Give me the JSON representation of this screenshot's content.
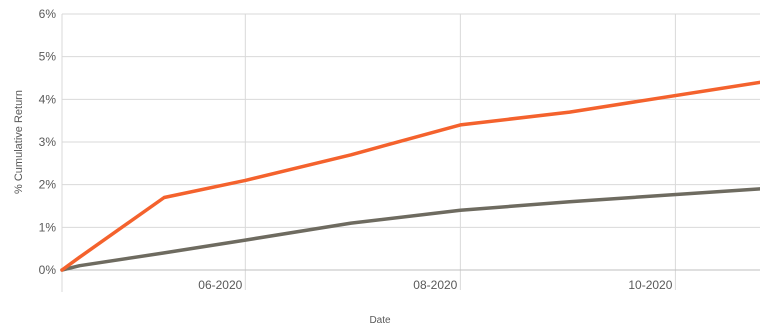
{
  "chart_data": {
    "type": "line",
    "title": "",
    "xlabel": "Date",
    "ylabel": "% Cumulative Return",
    "x_range": [
      "2020-04-10",
      "2020-10-25"
    ],
    "ylim": [
      0,
      6
    ],
    "y_ticks": [
      {
        "value": 0,
        "label": "0%"
      },
      {
        "value": 1,
        "label": "1%"
      },
      {
        "value": 2,
        "label": "2%"
      },
      {
        "value": 3,
        "label": "3%"
      },
      {
        "value": 4,
        "label": "4%"
      },
      {
        "value": 5,
        "label": "5%"
      },
      {
        "value": 6,
        "label": "6%"
      }
    ],
    "x_ticks": [
      {
        "value": "2020-06-01",
        "label": "06-2020"
      },
      {
        "value": "2020-08-01",
        "label": "08-2020"
      },
      {
        "value": "2020-10-01",
        "label": "10-2020"
      }
    ],
    "grid": true,
    "legend": "none",
    "series": [
      {
        "color": "#F4622D",
        "points": [
          {
            "x": "2020-04-10",
            "y": 0.0
          },
          {
            "x": "2020-04-15",
            "y": 0.3
          },
          {
            "x": "2020-05-09",
            "y": 1.7
          },
          {
            "x": "2020-06-01",
            "y": 2.1
          },
          {
            "x": "2020-07-01",
            "y": 2.7
          },
          {
            "x": "2020-08-01",
            "y": 3.4
          },
          {
            "x": "2020-09-01",
            "y": 3.7
          },
          {
            "x": "2020-10-25",
            "y": 4.4
          }
        ]
      },
      {
        "color": "#6E6B60",
        "points": [
          {
            "x": "2020-04-10",
            "y": 0.0
          },
          {
            "x": "2020-04-15",
            "y": 0.1
          },
          {
            "x": "2020-05-09",
            "y": 0.4
          },
          {
            "x": "2020-06-01",
            "y": 0.7
          },
          {
            "x": "2020-07-01",
            "y": 1.1
          },
          {
            "x": "2020-08-01",
            "y": 1.4
          },
          {
            "x": "2020-09-01",
            "y": 1.6
          },
          {
            "x": "2020-10-25",
            "y": 1.9
          }
        ]
      }
    ]
  }
}
